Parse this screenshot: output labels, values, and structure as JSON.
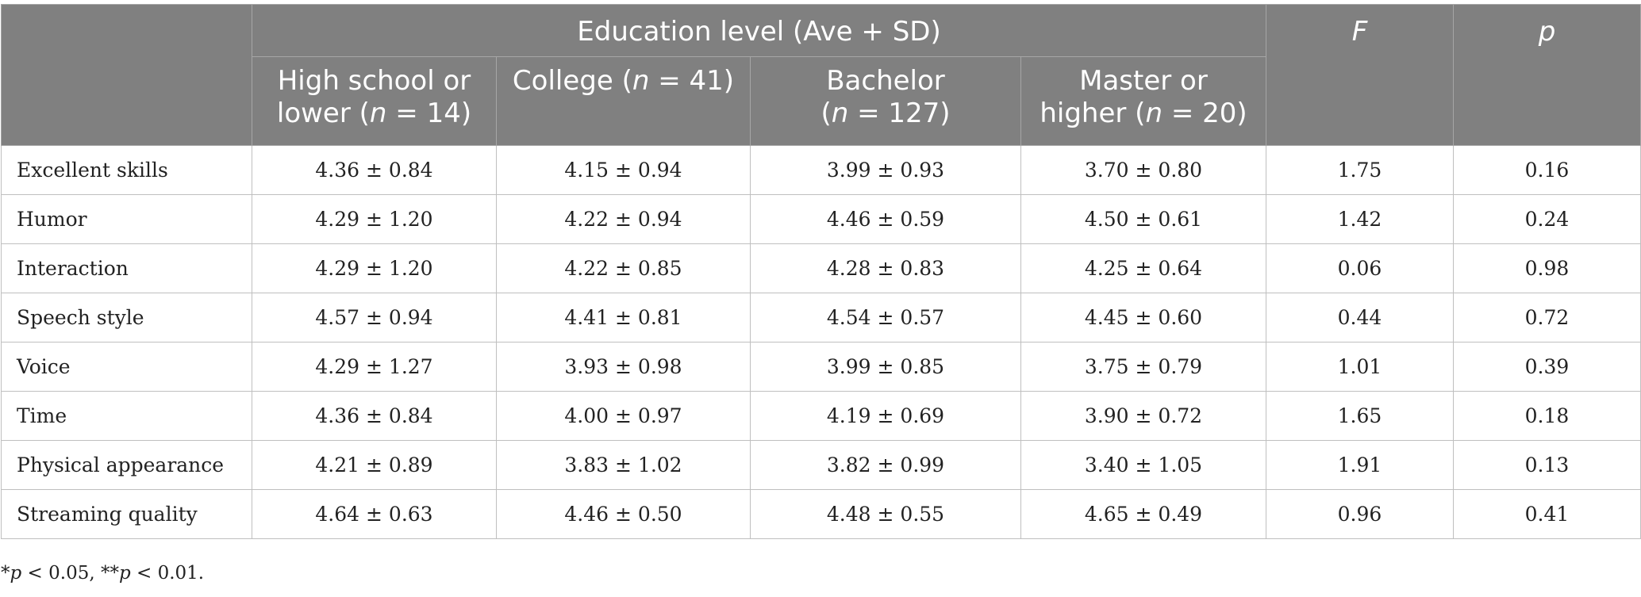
{
  "header": {
    "group_title": "Education level (Ave + SD)",
    "f_label": "F",
    "p_label": "p",
    "columns": [
      {
        "line1": "High school or",
        "line2_pre": "lower (",
        "n_symbol": "n",
        "line2_post": " = 14)"
      },
      {
        "line1_pre": "College (",
        "n_symbol": "n",
        "line1_post": " = 41)"
      },
      {
        "line1": "Bachelor",
        "line2_pre": "(",
        "n_symbol": "n",
        "line2_post": " = 127)"
      },
      {
        "line1": "Master or",
        "line2_pre": "higher (",
        "n_symbol": "n",
        "line2_post": " = 20)"
      }
    ]
  },
  "rows": [
    {
      "label": "Excellent skills",
      "hs": "4.36 ± 0.84",
      "college": "4.15 ± 0.94",
      "bachelor": "3.99 ± 0.93",
      "master": "3.70 ± 0.80",
      "f": "1.75",
      "p": "0.16"
    },
    {
      "label": "Humor",
      "hs": "4.29 ± 1.20",
      "college": "4.22 ± 0.94",
      "bachelor": "4.46 ± 0.59",
      "master": "4.50 ± 0.61",
      "f": "1.42",
      "p": "0.24"
    },
    {
      "label": "Interaction",
      "hs": "4.29 ± 1.20",
      "college": "4.22 ± 0.85",
      "bachelor": "4.28 ± 0.83",
      "master": "4.25 ± 0.64",
      "f": "0.06",
      "p": "0.98"
    },
    {
      "label": "Speech style",
      "hs": "4.57 ± 0.94",
      "college": "4.41 ± 0.81",
      "bachelor": "4.54 ± 0.57",
      "master": "4.45 ± 0.60",
      "f": "0.44",
      "p": "0.72"
    },
    {
      "label": "Voice",
      "hs": "4.29 ± 1.27",
      "college": "3.93 ± 0.98",
      "bachelor": "3.99 ± 0.85",
      "master": "3.75 ± 0.79",
      "f": "1.01",
      "p": "0.39"
    },
    {
      "label": "Time",
      "hs": "4.36 ± 0.84",
      "college": "4.00 ± 0.97",
      "bachelor": "4.19 ± 0.69",
      "master": "3.90 ± 0.72",
      "f": "1.65",
      "p": "0.18"
    },
    {
      "label": "Physical appearance",
      "hs": "4.21 ± 0.89",
      "college": "3.83 ± 1.02",
      "bachelor": "3.82 ± 0.99",
      "master": "3.40 ± 1.05",
      "f": "1.91",
      "p": "0.13"
    },
    {
      "label": "Streaming quality",
      "hs": "4.64 ± 0.63",
      "college": "4.46 ± 0.50",
      "bachelor": "4.48 ± 0.55",
      "master": "4.65 ± 0.49",
      "f": "0.96",
      "p": "0.41"
    }
  ],
  "footnote": {
    "star1": "*",
    "p1": "p",
    "rest1": " < 0.05, **",
    "p2": "p",
    "rest2": " < 0.01."
  },
  "colors": {
    "header_bg": "#808080",
    "header_text": "#ffffff",
    "border": "#bfbfbf"
  }
}
